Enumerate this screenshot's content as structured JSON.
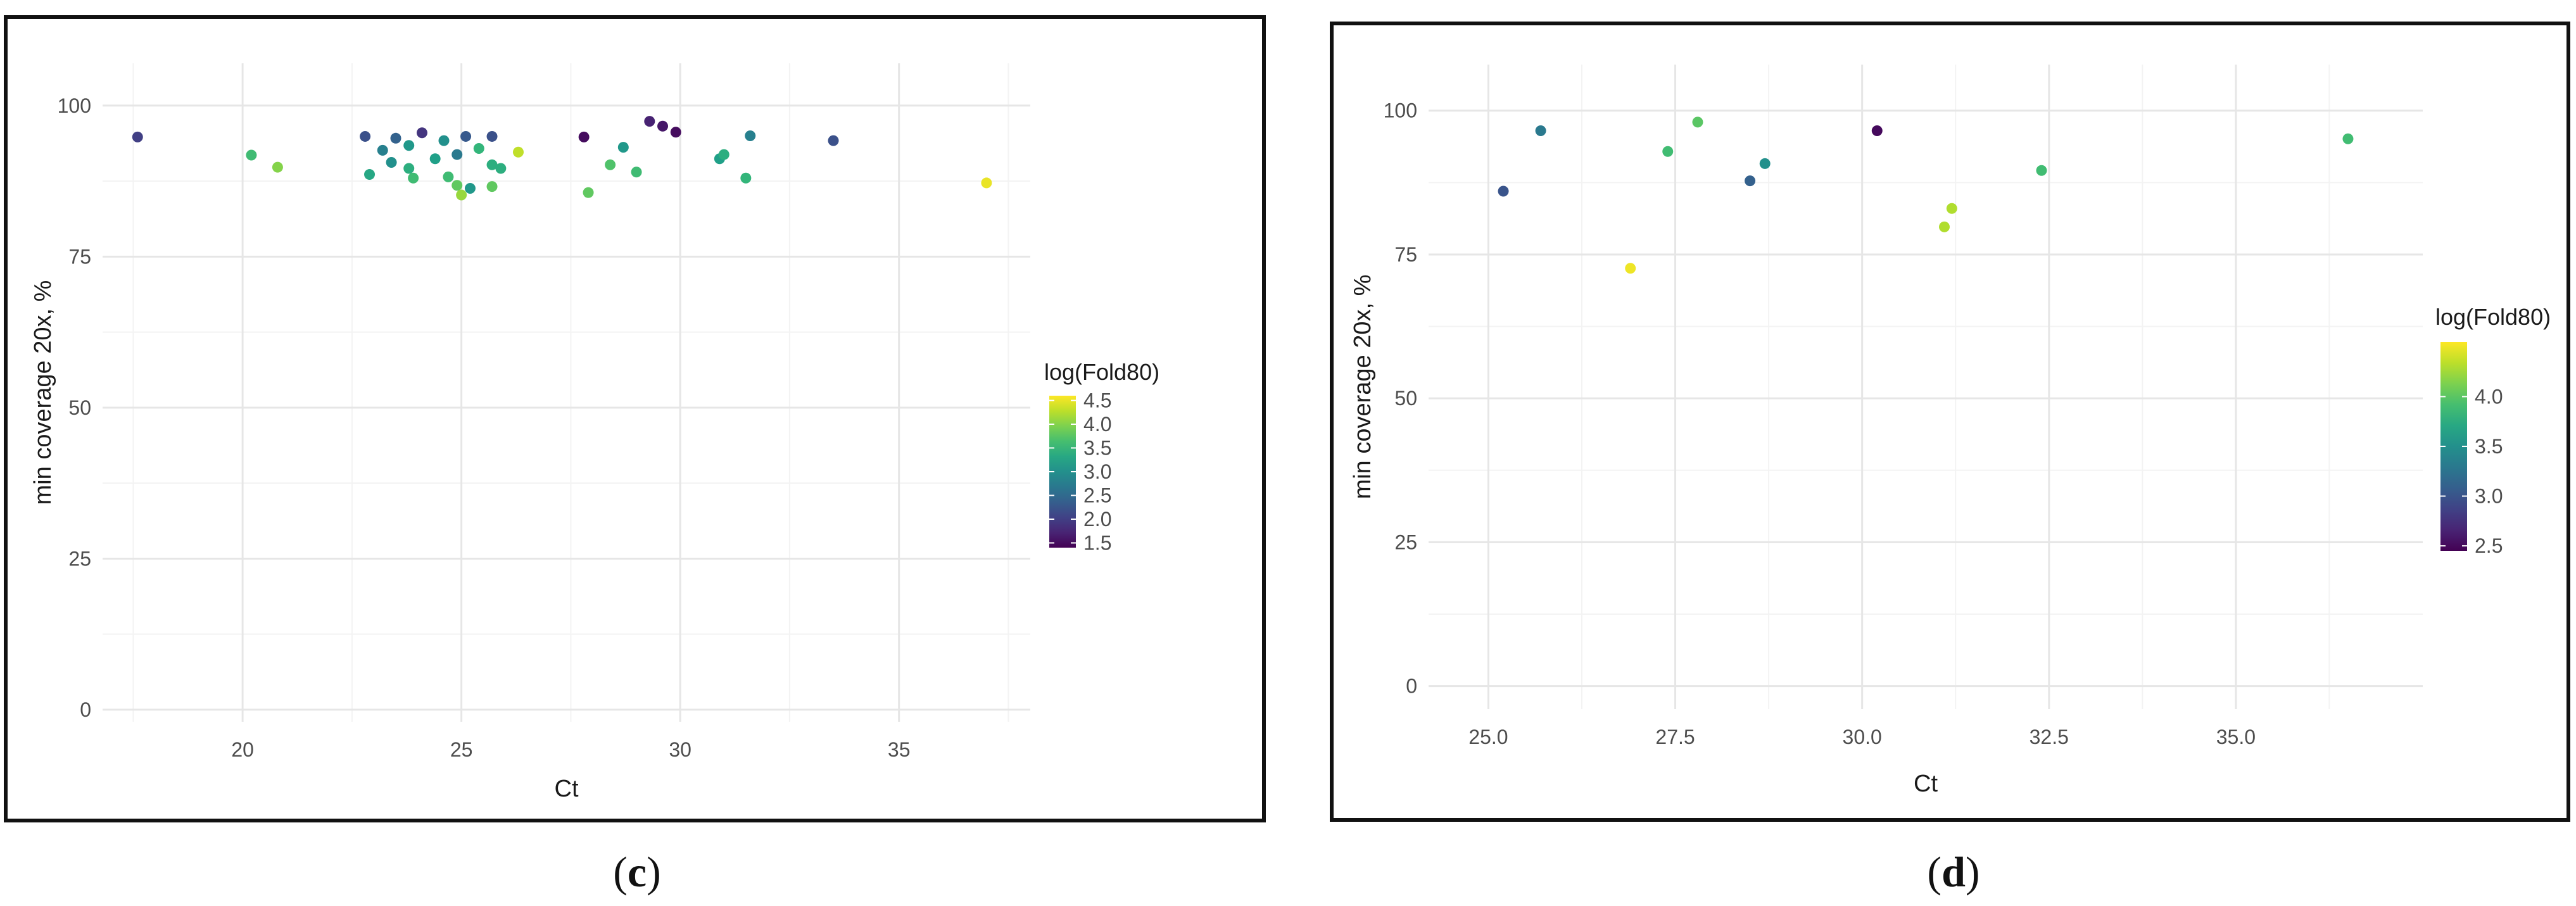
{
  "captions": {
    "c": "c",
    "d": "d"
  },
  "chart_data": [
    {
      "panel": "c",
      "type": "scatter",
      "xlabel": "Ct",
      "ylabel": "min coverage 20x, %",
      "xlim": [
        16.8,
        38.0
      ],
      "ylim": [
        -2,
        107
      ],
      "xticks": [
        20,
        25,
        30,
        35
      ],
      "yticks": [
        0,
        25,
        50,
        75,
        100
      ],
      "grid": true,
      "legend": {
        "title": "log(Fold80)",
        "placement": "right",
        "range": [
          1.4,
          4.6
        ],
        "ticks": [
          1.5,
          2.0,
          2.5,
          3.0,
          3.5,
          4.0,
          4.5
        ],
        "tick_labels": [
          "1.5",
          "2.0",
          "2.5",
          "3.0",
          "3.5",
          "4.0",
          "4.5"
        ]
      },
      "points": [
        {
          "x": 17.6,
          "y": 94.8,
          "c": 2.0
        },
        {
          "x": 20.2,
          "y": 91.8,
          "c": 3.6
        },
        {
          "x": 20.8,
          "y": 89.8,
          "c": 4.0
        },
        {
          "x": 22.8,
          "y": 94.9,
          "c": 2.2
        },
        {
          "x": 22.9,
          "y": 88.6,
          "c": 3.3
        },
        {
          "x": 23.2,
          "y": 92.6,
          "c": 2.8
        },
        {
          "x": 23.4,
          "y": 90.6,
          "c": 3.0
        },
        {
          "x": 23.5,
          "y": 94.6,
          "c": 2.4
        },
        {
          "x": 23.8,
          "y": 93.4,
          "c": 3.1
        },
        {
          "x": 23.8,
          "y": 89.6,
          "c": 3.4
        },
        {
          "x": 23.9,
          "y": 88.0,
          "c": 3.6
        },
        {
          "x": 24.1,
          "y": 95.5,
          "c": 1.9
        },
        {
          "x": 24.4,
          "y": 91.2,
          "c": 3.2
        },
        {
          "x": 24.6,
          "y": 94.2,
          "c": 3.0
        },
        {
          "x": 24.7,
          "y": 88.2,
          "c": 3.6
        },
        {
          "x": 24.9,
          "y": 91.9,
          "c": 2.7
        },
        {
          "x": 24.9,
          "y": 86.8,
          "c": 3.8
        },
        {
          "x": 25.0,
          "y": 85.2,
          "c": 4.1
        },
        {
          "x": 25.1,
          "y": 94.9,
          "c": 2.3
        },
        {
          "x": 25.2,
          "y": 86.3,
          "c": 3.1
        },
        {
          "x": 25.4,
          "y": 92.9,
          "c": 3.5
        },
        {
          "x": 25.7,
          "y": 94.9,
          "c": 2.2
        },
        {
          "x": 25.7,
          "y": 90.2,
          "c": 3.4
        },
        {
          "x": 25.7,
          "y": 86.6,
          "c": 3.8
        },
        {
          "x": 25.9,
          "y": 89.6,
          "c": 3.4
        },
        {
          "x": 26.3,
          "y": 92.3,
          "c": 4.3
        },
        {
          "x": 27.8,
          "y": 94.8,
          "c": 1.5
        },
        {
          "x": 27.9,
          "y": 85.6,
          "c": 3.8
        },
        {
          "x": 28.4,
          "y": 90.2,
          "c": 3.7
        },
        {
          "x": 28.7,
          "y": 93.1,
          "c": 3.1
        },
        {
          "x": 29.0,
          "y": 89.0,
          "c": 3.6
        },
        {
          "x": 29.3,
          "y": 97.4,
          "c": 1.7
        },
        {
          "x": 29.6,
          "y": 96.6,
          "c": 1.6
        },
        {
          "x": 29.9,
          "y": 95.6,
          "c": 1.5
        },
        {
          "x": 30.9,
          "y": 91.2,
          "c": 3.2
        },
        {
          "x": 31.0,
          "y": 91.9,
          "c": 3.4
        },
        {
          "x": 31.5,
          "y": 88.0,
          "c": 3.5
        },
        {
          "x": 31.6,
          "y": 95.0,
          "c": 2.8
        },
        {
          "x": 33.5,
          "y": 94.2,
          "c": 2.2
        },
        {
          "x": 37.0,
          "y": 87.2,
          "c": 4.5
        }
      ]
    },
    {
      "panel": "d",
      "type": "scatter",
      "xlabel": "Ct",
      "ylabel": "min coverage 20x, %",
      "xlim": [
        24.2,
        37.5
      ],
      "ylim": [
        -4,
        108
      ],
      "xticks": [
        25.0,
        27.5,
        30.0,
        32.5,
        35.0
      ],
      "xtick_labels": [
        "25.0",
        "27.5",
        "30.0",
        "32.5",
        "35.0"
      ],
      "yticks": [
        0,
        25,
        50,
        75,
        100
      ],
      "grid": true,
      "legend": {
        "title": "log(Fold80)",
        "placement": "right",
        "range": [
          2.45,
          4.55
        ],
        "ticks": [
          2.5,
          3.0,
          3.5,
          4.0
        ],
        "tick_labels": [
          "2.5",
          "3.0",
          "3.5",
          "4.0"
        ]
      },
      "points": [
        {
          "x": 25.2,
          "y": 86.0,
          "c": 3.0
        },
        {
          "x": 25.7,
          "y": 96.5,
          "c": 3.3
        },
        {
          "x": 26.9,
          "y": 72.6,
          "c": 4.5
        },
        {
          "x": 27.4,
          "y": 92.9,
          "c": 3.9
        },
        {
          "x": 27.8,
          "y": 98.0,
          "c": 4.0
        },
        {
          "x": 28.5,
          "y": 87.8,
          "c": 3.1
        },
        {
          "x": 28.7,
          "y": 90.8,
          "c": 3.5
        },
        {
          "x": 30.2,
          "y": 96.5,
          "c": 2.5
        },
        {
          "x": 31.1,
          "y": 79.8,
          "c": 4.3
        },
        {
          "x": 31.2,
          "y": 83.0,
          "c": 4.3
        },
        {
          "x": 32.4,
          "y": 89.6,
          "c": 3.9
        },
        {
          "x": 36.5,
          "y": 95.1,
          "c": 3.9
        }
      ]
    }
  ]
}
